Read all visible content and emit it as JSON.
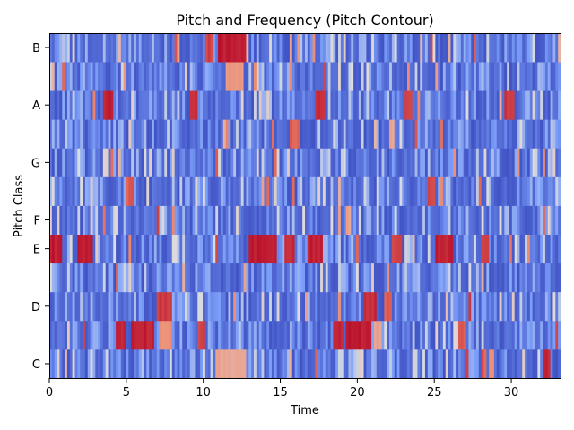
{
  "chart_data": {
    "type": "heatmap",
    "title": "Pitch and Frequency (Pitch Contour)",
    "xlabel": "Time",
    "ylabel": "Pitch Class",
    "xlim": [
      0,
      33.2
    ],
    "x_ticks": [
      0,
      5,
      10,
      15,
      20,
      25,
      30
    ],
    "y_tick_labels": [
      {
        "label": "C",
        "row": 0
      },
      {
        "label": "D",
        "row": 2
      },
      {
        "label": "E",
        "row": 4
      },
      {
        "label": "F",
        "row": 5
      },
      {
        "label": "G",
        "row": 7
      },
      {
        "label": "A",
        "row": 9
      },
      {
        "label": "B",
        "row": 11
      }
    ],
    "pitch_rows": 12,
    "time_frames": 200,
    "colormap": "coolwarm",
    "value_range": [
      0,
      1
    ],
    "hot_regions": [
      {
        "row": 11,
        "t": [
          11.0,
          12.7
        ],
        "value": 0.98
      },
      {
        "row": 11,
        "t": [
          10.2,
          10.6
        ],
        "value": 0.9
      },
      {
        "row": 10,
        "t": [
          11.4,
          12.6
        ],
        "value": 0.72
      },
      {
        "row": 9,
        "t": [
          3.5,
          4.2
        ],
        "value": 0.97
      },
      {
        "row": 9,
        "t": [
          9.1,
          9.7
        ],
        "value": 0.95
      },
      {
        "row": 9,
        "t": [
          17.2,
          18.0
        ],
        "value": 0.95
      },
      {
        "row": 9,
        "t": [
          23.0,
          23.6
        ],
        "value": 0.9
      },
      {
        "row": 9,
        "t": [
          29.5,
          30.2
        ],
        "value": 0.92
      },
      {
        "row": 8,
        "t": [
          15.6,
          16.2
        ],
        "value": 0.85
      },
      {
        "row": 6,
        "t": [
          24.5,
          25.0
        ],
        "value": 0.9
      },
      {
        "row": 6,
        "t": [
          5.0,
          5.5
        ],
        "value": 0.85
      },
      {
        "row": 5,
        "t": [
          19.2,
          19.6
        ],
        "value": 0.7
      },
      {
        "row": 4,
        "t": [
          0.0,
          0.8
        ],
        "value": 0.98
      },
      {
        "row": 4,
        "t": [
          1.8,
          2.9
        ],
        "value": 0.98
      },
      {
        "row": 4,
        "t": [
          13.0,
          14.8
        ],
        "value": 0.98
      },
      {
        "row": 4,
        "t": [
          15.2,
          16.0
        ],
        "value": 0.95
      },
      {
        "row": 4,
        "t": [
          16.7,
          17.8
        ],
        "value": 0.97
      },
      {
        "row": 4,
        "t": [
          22.3,
          22.9
        ],
        "value": 0.9
      },
      {
        "row": 4,
        "t": [
          25.1,
          26.3
        ],
        "value": 0.97
      },
      {
        "row": 4,
        "t": [
          28.0,
          28.5
        ],
        "value": 0.9
      },
      {
        "row": 2,
        "t": [
          7.0,
          8.0
        ],
        "value": 0.92
      },
      {
        "row": 2,
        "t": [
          20.4,
          21.2
        ],
        "value": 0.95
      },
      {
        "row": 2,
        "t": [
          21.8,
          22.2
        ],
        "value": 0.85
      },
      {
        "row": 1,
        "t": [
          4.3,
          5.0
        ],
        "value": 0.97
      },
      {
        "row": 1,
        "t": [
          5.3,
          6.8
        ],
        "value": 0.97
      },
      {
        "row": 1,
        "t": [
          7.2,
          7.9
        ],
        "value": 0.75
      },
      {
        "row": 1,
        "t": [
          9.6,
          10.1
        ],
        "value": 0.9
      },
      {
        "row": 1,
        "t": [
          18.4,
          19.1
        ],
        "value": 0.95
      },
      {
        "row": 1,
        "t": [
          19.3,
          20.9
        ],
        "value": 0.98
      },
      {
        "row": 1,
        "t": [
          21.0,
          21.6
        ],
        "value": 0.7
      },
      {
        "row": 1,
        "t": [
          26.6,
          27.0
        ],
        "value": 0.85
      },
      {
        "row": 0,
        "t": [
          10.8,
          12.7
        ],
        "value": 0.68
      },
      {
        "row": 0,
        "t": [
          32.0,
          32.5
        ],
        "value": 0.95
      },
      {
        "row": 0,
        "t": [
          28.5,
          28.9
        ],
        "value": 0.75
      }
    ]
  }
}
